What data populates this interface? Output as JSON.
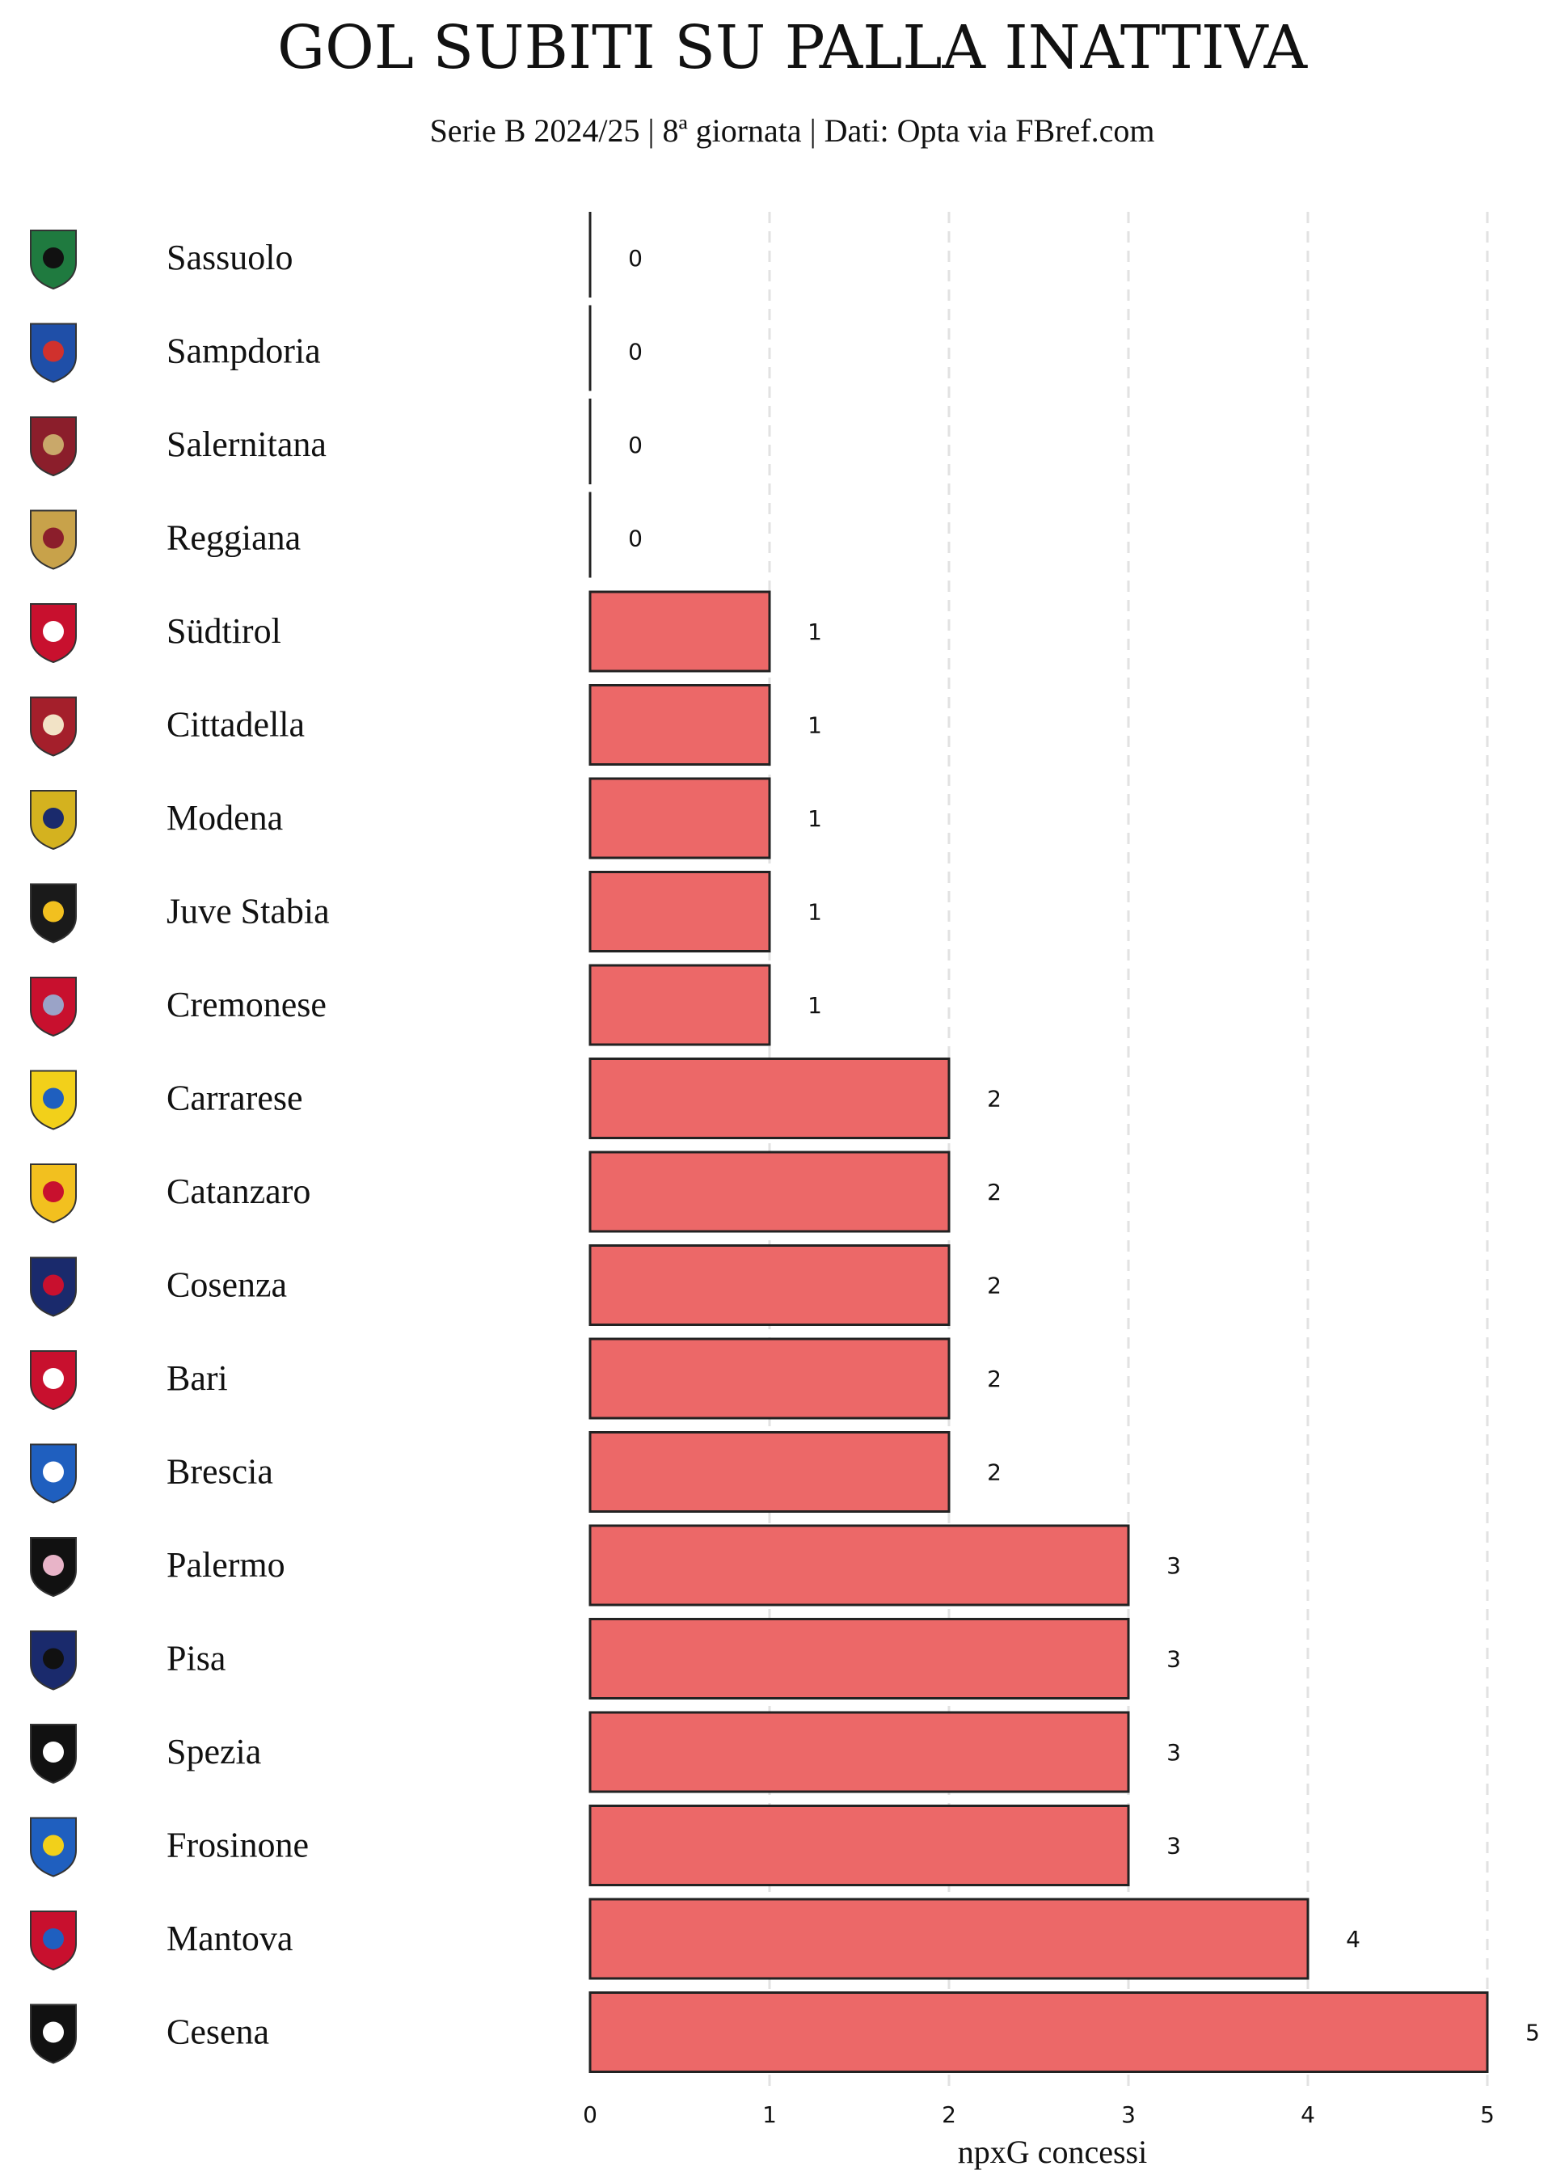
{
  "chart_data": {
    "type": "bar",
    "orientation": "horizontal",
    "title": "GOL SUBITI SU PALLA INATTIVA",
    "subtitle": "Serie B 2024/25 | 8ª giornata | Dati: Opta via FBref.com",
    "xlabel": "npxG concessi",
    "ylabel": "",
    "xlim": [
      0,
      5
    ],
    "x_ticks": [
      "0",
      "1",
      "2",
      "3",
      "4",
      "5"
    ],
    "grid": "vertical dashed",
    "categories": [
      "Sassuolo",
      "Sampdoria",
      "Salernitana",
      "Reggiana",
      "Südtirol",
      "Cittadella",
      "Modena",
      "Juve Stabia",
      "Cremonese",
      "Carrarese",
      "Catanzaro",
      "Cosenza",
      "Bari",
      "Brescia",
      "Palermo",
      "Pisa",
      "Spezia",
      "Frosinone",
      "Mantova",
      "Cesena"
    ],
    "values": [
      0,
      0,
      0,
      0,
      1,
      1,
      1,
      1,
      1,
      2,
      2,
      2,
      2,
      2,
      3,
      3,
      3,
      3,
      4,
      5
    ],
    "value_labels": [
      "0",
      "0",
      "0",
      "0",
      "1",
      "1",
      "1",
      "1",
      "1",
      "2",
      "2",
      "2",
      "2",
      "2",
      "3",
      "3",
      "3",
      "3",
      "4",
      "5"
    ],
    "team_logo_colors": [
      [
        "#1f7a3f",
        "#111111"
      ],
      [
        "#1f4fa8",
        "#d0312d"
      ],
      [
        "#8b1e2b",
        "#c9a86a"
      ],
      [
        "#c8a24a",
        "#8b1e2b"
      ],
      [
        "#c8102e",
        "#ffffff"
      ],
      [
        "#a41f2b",
        "#f2e3c6"
      ],
      [
        "#d4b21f",
        "#1a2a6c"
      ],
      [
        "#1a1a1a",
        "#f2c01f"
      ],
      [
        "#c8102e",
        "#9aa3c7"
      ],
      [
        "#f2d01a",
        "#1f5fbf"
      ],
      [
        "#f2c01f",
        "#c8102e"
      ],
      [
        "#1a2a6c",
        "#c8102e"
      ],
      [
        "#c8102e",
        "#ffffff"
      ],
      [
        "#1f5fbf",
        "#ffffff"
      ],
      [
        "#111111",
        "#e8b4c8"
      ],
      [
        "#1a2a6c",
        "#111111"
      ],
      [
        "#111111",
        "#ffffff"
      ],
      [
        "#1f5fbf",
        "#f2d01a"
      ],
      [
        "#c8102e",
        "#1f5fbf"
      ],
      [
        "#111111",
        "#ffffff"
      ]
    ],
    "bar_color": "#ec6868",
    "bar_edge_color": "#222222"
  }
}
